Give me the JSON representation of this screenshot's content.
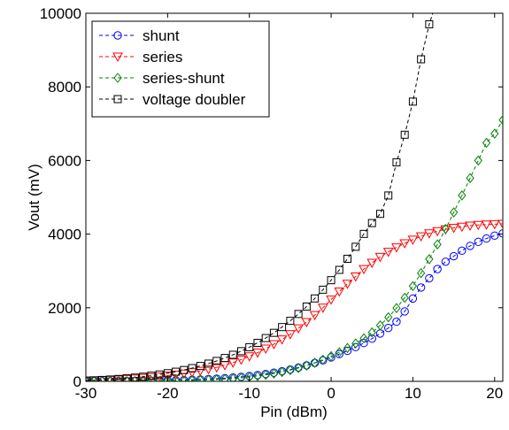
{
  "chart_data": {
    "type": "line",
    "title": "",
    "xlabel": "Pin (dBm)",
    "ylabel": "Vout (mV)",
    "xlim": [
      -30,
      21
    ],
    "ylim": [
      0,
      10000
    ],
    "x_ticks": [
      -30,
      -20,
      -10,
      0,
      10,
      20
    ],
    "y_ticks": [
      0,
      2000,
      4000,
      6000,
      8000,
      10000
    ],
    "grid": false,
    "legend_position": "top-left",
    "series": [
      {
        "name": "shunt",
        "color": "#0000ff",
        "marker": "circle",
        "x": [
          -30,
          -29,
          -28,
          -27,
          -26,
          -25,
          -24,
          -23,
          -22,
          -21,
          -20,
          -19,
          -18,
          -17,
          -16,
          -15,
          -14,
          -13,
          -12,
          -11,
          -10,
          -9,
          -8,
          -7,
          -6,
          -5,
          -4,
          -3,
          -2,
          -1,
          0,
          1,
          2,
          3,
          4,
          5,
          6,
          7,
          8,
          9,
          10,
          11,
          12,
          13,
          14,
          15,
          16,
          17,
          18,
          19,
          20,
          21
        ],
        "y": [
          5,
          6,
          7,
          8,
          9,
          10,
          12,
          14,
          17,
          20,
          24,
          29,
          35,
          42,
          50,
          60,
          72,
          86,
          103,
          122,
          145,
          170,
          200,
          235,
          275,
          320,
          375,
          435,
          500,
          570,
          650,
          740,
          830,
          930,
          1040,
          1160,
          1300,
          1450,
          1620,
          1900,
          2250,
          2550,
          2800,
          3050,
          3250,
          3400,
          3550,
          3680,
          3790,
          3880,
          3960,
          4020
        ]
      },
      {
        "name": "series",
        "color": "#ff0000",
        "marker": "triangle-down",
        "x": [
          -30,
          -29,
          -28,
          -27,
          -26,
          -25,
          -24,
          -23,
          -22,
          -21,
          -20,
          -19,
          -18,
          -17,
          -16,
          -15,
          -14,
          -13,
          -12,
          -11,
          -10,
          -9,
          -8,
          -7,
          -6,
          -5,
          -4,
          -3,
          -2,
          -1,
          0,
          1,
          2,
          3,
          4,
          5,
          6,
          7,
          8,
          9,
          10,
          11,
          12,
          13,
          14,
          15,
          16,
          17,
          18,
          19,
          20,
          21
        ],
        "y": [
          20,
          25,
          32,
          40,
          50,
          62,
          76,
          92,
          110,
          130,
          155,
          180,
          210,
          245,
          285,
          330,
          380,
          440,
          510,
          590,
          680,
          780,
          890,
          1010,
          1140,
          1280,
          1440,
          1610,
          1800,
          2000,
          2220,
          2440,
          2650,
          2850,
          3050,
          3220,
          3380,
          3520,
          3640,
          3750,
          3850,
          3940,
          4020,
          4080,
          4130,
          4170,
          4200,
          4230,
          4250,
          4260,
          4270,
          4280
        ]
      },
      {
        "name": "series-shunt",
        "color": "#008000",
        "marker": "diamond",
        "x": [
          -30,
          -29,
          -28,
          -27,
          -26,
          -25,
          -24,
          -23,
          -22,
          -21,
          -20,
          -19,
          -18,
          -17,
          -16,
          -15,
          -14,
          -13,
          -12,
          -11,
          -10,
          -9,
          -8,
          -7,
          -6,
          -5,
          -4,
          -3,
          -2,
          -1,
          0,
          1,
          2,
          3,
          4,
          5,
          6,
          7,
          8,
          9,
          10,
          11,
          12,
          13,
          14,
          15,
          16,
          17,
          18,
          19,
          20,
          21
        ],
        "y": [
          2,
          2,
          3,
          3,
          4,
          5,
          6,
          7,
          9,
          11,
          14,
          17,
          21,
          26,
          32,
          40,
          50,
          62,
          77,
          95,
          117,
          143,
          175,
          212,
          255,
          305,
          362,
          428,
          503,
          588,
          685,
          790,
          905,
          1030,
          1170,
          1330,
          1520,
          1740,
          1990,
          2270,
          2590,
          2940,
          3320,
          3720,
          4140,
          4590,
          5050,
          5520,
          6000,
          6480,
          6730,
          7100
        ]
      },
      {
        "name": "voltage doubler",
        "color": "#000000",
        "marker": "square",
        "x": [
          -30,
          -29,
          -28,
          -27,
          -26,
          -25,
          -24,
          -23,
          -22,
          -21,
          -20,
          -19,
          -18,
          -17,
          -16,
          -15,
          -14,
          -13,
          -12,
          -11,
          -10,
          -9,
          -8,
          -7,
          -6,
          -5,
          -4,
          -3,
          -2,
          -1,
          0,
          1,
          2,
          3,
          4,
          5,
          6,
          7,
          8,
          9,
          10,
          11,
          12,
          13
        ],
        "y": [
          20,
          28,
          38,
          50,
          65,
          82,
          102,
          126,
          154,
          186,
          222,
          262,
          308,
          360,
          418,
          482,
          554,
          634,
          722,
          820,
          928,
          1046,
          1176,
          1318,
          1474,
          1644,
          1830,
          2032,
          2252,
          2490,
          2748,
          3028,
          3330,
          3656,
          4006,
          4300,
          4550,
          5050,
          5950,
          6700,
          7600,
          8750,
          9700,
          10400
        ]
      }
    ]
  }
}
